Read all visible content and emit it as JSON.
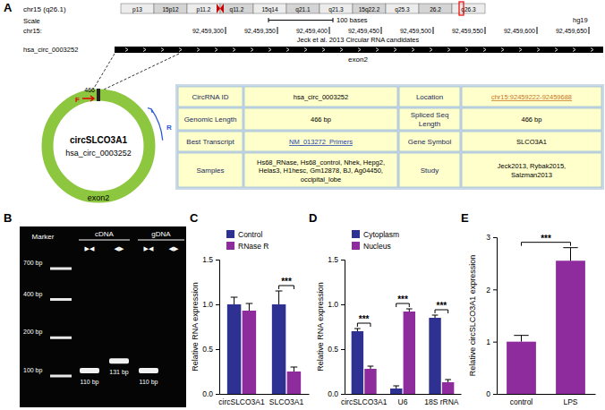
{
  "diagram": {
    "panel_labels": [
      "A",
      "B",
      "C",
      "D",
      "E"
    ],
    "genome_track": {
      "chrom_label": "chr15 (q26.1)",
      "bands": [
        "p13",
        "15p12",
        "p11.2",
        "q11.2",
        "15q14",
        "q21.1",
        "q21.3",
        "15q22.2",
        "q25.3",
        "26.2",
        "q26.3"
      ],
      "scale_label": "Scale",
      "scale_text": "100 bases",
      "assembly": "hg19",
      "chrom": "chr15:",
      "positions": [
        "92,459,300",
        "92,459,350",
        "92,459,400",
        "92,459,450",
        "92,459,500",
        "92,459,550",
        "92,459,600",
        "92,459,650"
      ],
      "track_title": "Jeck et al. 2013 Circular RNA candidates",
      "feature": "hsa_circ_0003252",
      "exon": "exon2"
    },
    "circle": {
      "name": "circSLCO3A1",
      "id": "hsa_circ_0003252",
      "exon": "exon2",
      "length_label": "466",
      "forward": "F",
      "reverse": "R"
    },
    "table": {
      "rows": [
        [
          [
            "CircRNA ID"
          ],
          [
            "hsa_circ_0003252"
          ],
          [
            "Location"
          ],
          [
            "chr15:92459222-92459688"
          ]
        ],
        [
          [
            "Genomic Length"
          ],
          [
            "466 bp"
          ],
          [
            "Spliced Seq",
            "Length"
          ],
          [
            "466 bp"
          ]
        ],
        [
          [
            "Best Transcript"
          ],
          [
            "NM_013272  Primers"
          ],
          [
            "Gene Symbol"
          ],
          [
            "SLCO3A1"
          ]
        ],
        [
          [
            "Samples"
          ],
          [
            "Hs68_RNase, Hs68_control, Nhek, Hepg2,",
            "Helas3, H1hesc, Gm12878, BJ, Ag04450,",
            "occipital_lobe"
          ],
          [
            "Study"
          ],
          [
            "Jeck2013, Rybak2015,",
            "Salzman2013"
          ]
        ]
      ]
    },
    "gel": {
      "marker_label": "Marker",
      "marker_sizes": [
        "700 bp",
        "400 bp",
        "200 bp",
        "100 bp"
      ],
      "groups": [
        {
          "label": "cDNA",
          "lanes": [
            0,
            1
          ]
        },
        {
          "label": "gDNA",
          "lanes": [
            2,
            3
          ]
        }
      ],
      "lanes": [
        {
          "primers": "▶◀",
          "band": "110 bp"
        },
        {
          "primers": "◀▶",
          "band": "131 bp"
        },
        {
          "primers": "▶◀",
          "band": "110 bp"
        },
        {
          "primers": "◀▶",
          "band": null
        }
      ]
    }
  },
  "chart_data": [
    {
      "type": "bar",
      "y_label": "Relative RNA expression",
      "categories": [
        "circSLCO3A1",
        "SLCO3A1"
      ],
      "series": [
        {
          "name": "Control",
          "color": "#2e3192",
          "values": [
            1.0,
            1.0
          ],
          "errors": [
            0.08,
            0.15
          ]
        },
        {
          "name": "RNase R",
          "color": "#8e2c9e",
          "values": [
            0.93,
            0.25
          ],
          "errors": [
            0.08,
            0.05
          ]
        }
      ],
      "ylim": [
        0,
        1.5
      ],
      "yticks": [
        {
          "value": 0,
          "label": "0.0"
        },
        0.5,
        {
          "value": 1,
          "label": "1.0"
        },
        1.5
      ],
      "legend": "top",
      "annotations": [
        {
          "text": "***",
          "category": "SLCO3A1"
        }
      ]
    },
    {
      "type": "bar",
      "y_label": "Relative RNA expression",
      "categories": [
        "circSLCO3A1",
        "U6",
        "18S rRNA"
      ],
      "series": [
        {
          "name": "Cytoplasm",
          "color": "#2e3192",
          "values": [
            0.7,
            0.06,
            0.85
          ],
          "errors": [
            0.03,
            0.03,
            0.03
          ]
        },
        {
          "name": "Nucleus",
          "color": "#8e2c9e",
          "values": [
            0.28,
            0.92,
            0.13
          ],
          "errors": [
            0.03,
            0.03,
            0.03
          ]
        }
      ],
      "ylim": [
        0,
        1.5
      ],
      "yticks": [
        {
          "value": 0,
          "label": "0.0"
        },
        0.5,
        {
          "value": 1,
          "label": "1.0"
        },
        1.5
      ],
      "legend": "top",
      "annotations": [
        {
          "text": "***",
          "category": "circSLCO3A1"
        },
        {
          "text": "***",
          "category": "U6"
        },
        {
          "text": "***",
          "category": "18S rRNA"
        }
      ]
    },
    {
      "type": "bar",
      "y_label": "Relative circSLCO3A1 expression",
      "categories": [
        "control",
        "LPS"
      ],
      "values": [
        1.0,
        2.55
      ],
      "errors": [
        0.12,
        0.25
      ],
      "color": "#8e2c9e",
      "ylim": [
        0,
        3
      ],
      "yticks": [
        0,
        1,
        2,
        3
      ],
      "annotations": [
        {
          "text": "***",
          "from": "control",
          "to": "LPS"
        }
      ]
    }
  ]
}
